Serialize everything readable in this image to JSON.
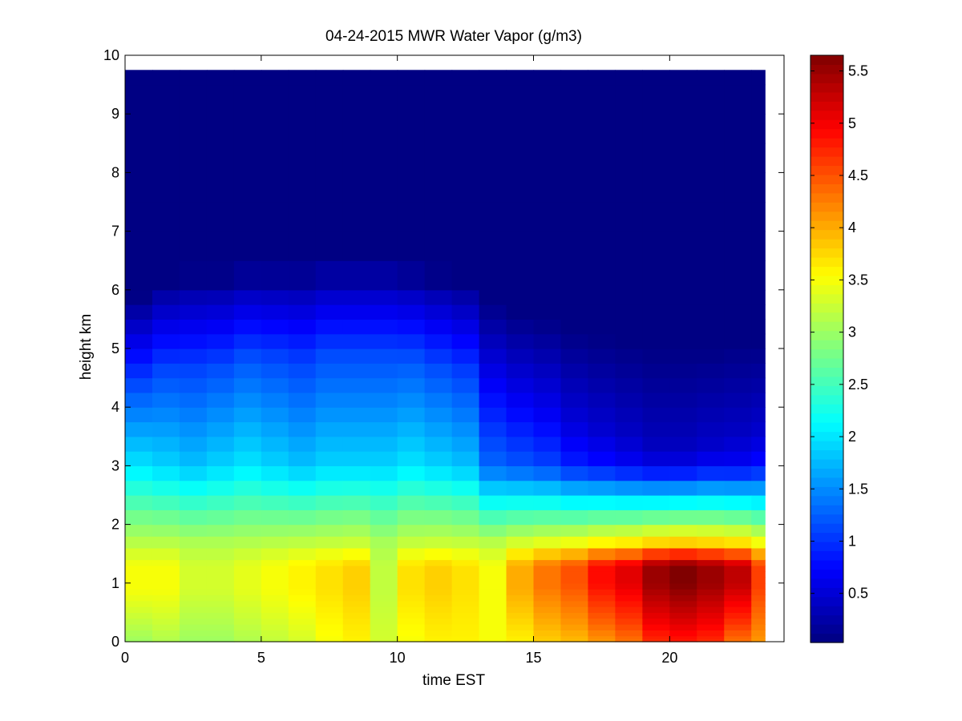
{
  "chart_data": {
    "type": "heatmap",
    "title": "04-24-2015 MWR Water Vapor (g/m3)",
    "xlabel": "time EST",
    "ylabel": "height km",
    "xlim": [
      0,
      24.2
    ],
    "ylim": [
      0,
      10
    ],
    "xticks": [
      0,
      5,
      10,
      15,
      20
    ],
    "yticks": [
      0,
      1,
      2,
      3,
      4,
      5,
      6,
      7,
      8,
      9,
      10
    ],
    "colormap": "jet",
    "clim": [
      0.03,
      5.65
    ],
    "colorbar_ticks": [
      0.5,
      1,
      1.5,
      2,
      2.5,
      3,
      3.5,
      4,
      4.5,
      5,
      5.5
    ],
    "grid": false,
    "time_hours": [
      0,
      1,
      2,
      3,
      4,
      5,
      6,
      7,
      8,
      9,
      10,
      11,
      12,
      13,
      14,
      15,
      16,
      17,
      18,
      19,
      20,
      21,
      22,
      23
    ],
    "profile_heights_km": [
      0,
      0.05,
      0.1,
      0.2,
      0.3,
      0.4,
      0.5,
      0.6,
      0.7,
      0.8,
      0.9,
      1.0,
      1.1,
      1.2,
      1.3,
      1.4,
      1.6,
      1.8,
      2.0,
      2.25,
      2.5,
      2.75,
      3.0,
      3.25,
      3.5,
      3.75,
      4.0,
      4.25,
      4.5,
      4.75,
      5.0,
      5.25,
      5.5,
      5.75,
      6.0,
      6.5,
      7.0,
      7.5,
      8.0,
      8.5,
      9.0,
      9.5,
      9.75
    ],
    "surface_values": [
      3.0,
      3.1,
      3.0,
      3.0,
      3.1,
      3.2,
      3.3,
      3.5,
      3.6,
      3.3,
      3.5,
      3.6,
      3.6,
      3.5,
      3.6,
      3.8,
      3.9,
      4.1,
      4.3,
      4.7,
      4.8,
      4.7,
      4.3,
      4.1
    ],
    "boundary_layer_peak_values": [
      3.5,
      3.5,
      3.3,
      3.3,
      3.4,
      3.5,
      3.6,
      3.7,
      3.8,
      3.2,
      3.7,
      3.8,
      3.7,
      3.5,
      4.0,
      4.3,
      4.5,
      4.9,
      5.1,
      5.5,
      5.65,
      5.5,
      5.3,
      4.6
    ],
    "boundary_layer_peak_height_km": [
      0.9,
      0.9,
      0.9,
      0.9,
      0.9,
      0.9,
      0.9,
      0.9,
      0.9,
      0.9,
      0.9,
      0.9,
      0.9,
      0.9,
      0.9,
      0.95,
      1.0,
      1.0,
      1.0,
      1.0,
      1.0,
      1.0,
      1.0,
      0.95
    ],
    "mid_level_values_at_3km": [
      2.0,
      1.9,
      1.8,
      1.9,
      2.0,
      1.9,
      1.8,
      1.9,
      1.9,
      1.9,
      2.0,
      1.9,
      1.8,
      1.3,
      1.2,
      1.1,
      0.9,
      0.8,
      0.7,
      0.6,
      0.6,
      0.7,
      0.7,
      0.8
    ],
    "moist_layer_top_km": [
      4.3,
      4.6,
      4.7,
      4.7,
      4.8,
      4.8,
      4.8,
      4.9,
      4.9,
      4.9,
      4.8,
      4.7,
      4.6,
      4.2,
      4.0,
      3.9,
      3.7,
      3.6,
      3.5,
      3.4,
      3.4,
      3.4,
      3.5,
      3.5
    ],
    "upper_level_value": 0.05
  }
}
